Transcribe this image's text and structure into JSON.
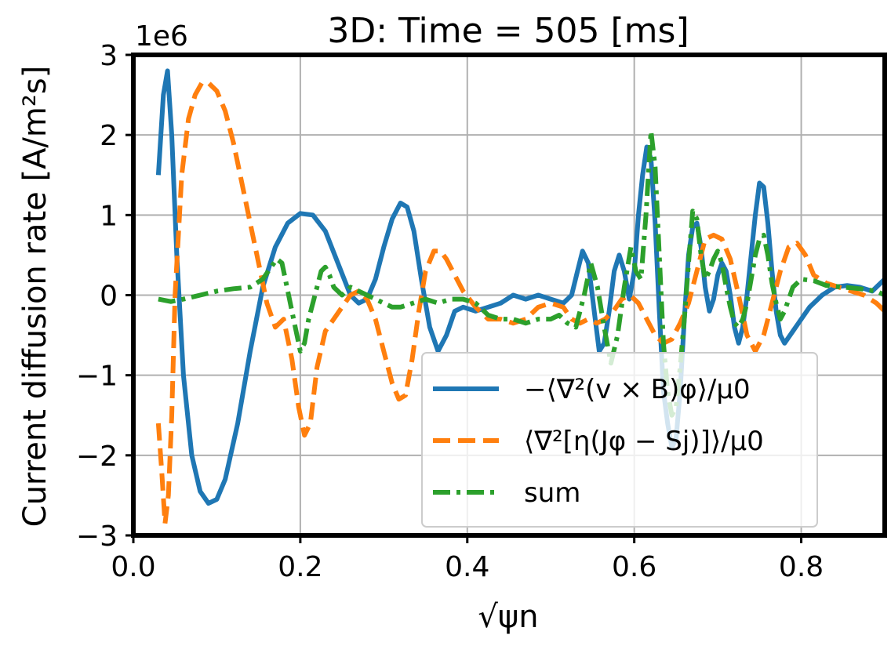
{
  "chart_data": {
    "type": "line",
    "title": "3D: Time = 505 [ms]",
    "xlabel": "√ψn",
    "ylabel": "Current diffusion rate [A/m²s]",
    "y_multiplier": "1e6",
    "xlim": [
      0.0,
      0.9
    ],
    "ylim": [
      -3,
      3
    ],
    "xticks": [
      0.0,
      0.2,
      0.4,
      0.6,
      0.8
    ],
    "xtick_labels": [
      "0.0",
      "0.2",
      "0.4",
      "0.6",
      "0.8"
    ],
    "yticks": [
      -3,
      -2,
      -1,
      0,
      1,
      2,
      3
    ],
    "ytick_labels": [
      "−3",
      "−2",
      "−1",
      "0",
      "1",
      "2",
      "3"
    ],
    "grid": true,
    "legend_position": "lower-right",
    "series": [
      {
        "name": "−⟨∇²(v × B)φ⟩/μ0",
        "color": "#1f77b4",
        "style": "solid",
        "x": [
          0.03,
          0.036,
          0.041,
          0.046,
          0.052,
          0.06,
          0.07,
          0.08,
          0.09,
          0.1,
          0.11,
          0.125,
          0.14,
          0.155,
          0.17,
          0.185,
          0.2,
          0.215,
          0.23,
          0.245,
          0.26,
          0.27,
          0.28,
          0.29,
          0.3,
          0.31,
          0.32,
          0.328,
          0.336,
          0.345,
          0.355,
          0.365,
          0.375,
          0.385,
          0.395,
          0.41,
          0.425,
          0.44,
          0.455,
          0.47,
          0.485,
          0.5,
          0.515,
          0.525,
          0.532,
          0.538,
          0.545,
          0.552,
          0.558,
          0.564,
          0.57,
          0.576,
          0.582,
          0.588,
          0.594,
          0.6,
          0.605,
          0.61,
          0.615,
          0.62,
          0.625,
          0.63,
          0.635,
          0.64,
          0.645,
          0.65,
          0.655,
          0.66,
          0.665,
          0.67,
          0.675,
          0.68,
          0.685,
          0.69,
          0.695,
          0.7,
          0.705,
          0.71,
          0.715,
          0.72,
          0.725,
          0.73,
          0.735,
          0.74,
          0.745,
          0.75,
          0.755,
          0.76,
          0.765,
          0.77,
          0.775,
          0.78,
          0.79,
          0.8,
          0.81,
          0.825,
          0.84,
          0.855,
          0.87,
          0.885,
          0.9
        ],
        "y": [
          1.5,
          2.5,
          2.8,
          2.0,
          0.5,
          -1.0,
          -2.0,
          -2.45,
          -2.6,
          -2.55,
          -2.3,
          -1.6,
          -0.7,
          0.1,
          0.6,
          0.9,
          1.02,
          1.0,
          0.8,
          0.4,
          0.0,
          -0.1,
          -0.05,
          0.2,
          0.6,
          0.95,
          1.15,
          1.1,
          0.8,
          0.2,
          -0.4,
          -0.7,
          -0.5,
          -0.2,
          -0.15,
          -0.2,
          -0.15,
          -0.1,
          0.0,
          -0.05,
          0.0,
          -0.05,
          -0.1,
          0.0,
          0.3,
          0.55,
          0.4,
          -0.2,
          -0.7,
          -0.6,
          -0.2,
          0.3,
          0.5,
          0.3,
          -0.05,
          0.3,
          1.0,
          1.5,
          1.85,
          1.7,
          0.9,
          -0.2,
          -1.2,
          -1.6,
          -1.9,
          -1.8,
          -1.2,
          -0.3,
          0.5,
          0.85,
          0.9,
          0.6,
          0.1,
          -0.2,
          -0.05,
          0.25,
          0.4,
          0.3,
          0.0,
          -0.4,
          -0.6,
          -0.4,
          0.0,
          0.5,
          1.0,
          1.4,
          1.35,
          0.9,
          0.3,
          -0.2,
          -0.5,
          -0.6,
          -0.45,
          -0.3,
          -0.15,
          0.0,
          0.1,
          0.12,
          0.1,
          0.05,
          0.2
        ]
      },
      {
        "name": "⟨∇²[η(Jφ − Sj)]⟩/μ0",
        "color": "#ff7f0e",
        "style": "dashed",
        "x": [
          0.03,
          0.034,
          0.038,
          0.042,
          0.046,
          0.05,
          0.058,
          0.066,
          0.074,
          0.082,
          0.09,
          0.1,
          0.11,
          0.12,
          0.13,
          0.14,
          0.15,
          0.16,
          0.17,
          0.18,
          0.19,
          0.198,
          0.205,
          0.212,
          0.22,
          0.23,
          0.24,
          0.25,
          0.26,
          0.27,
          0.28,
          0.29,
          0.3,
          0.31,
          0.318,
          0.326,
          0.334,
          0.342,
          0.35,
          0.36,
          0.368,
          0.375,
          0.385,
          0.395,
          0.41,
          0.425,
          0.44,
          0.455,
          0.47,
          0.485,
          0.5,
          0.515,
          0.525,
          0.535,
          0.545,
          0.555,
          0.565,
          0.575,
          0.585,
          0.595,
          0.605,
          0.615,
          0.625,
          0.635,
          0.645,
          0.655,
          0.665,
          0.675,
          0.685,
          0.695,
          0.705,
          0.715,
          0.725,
          0.735,
          0.745,
          0.755,
          0.765,
          0.775,
          0.785,
          0.795,
          0.805,
          0.815,
          0.83,
          0.845,
          0.86,
          0.875,
          0.89,
          0.9
        ],
        "y": [
          -1.6,
          -2.2,
          -2.85,
          -2.5,
          -1.5,
          0.0,
          1.5,
          2.2,
          2.5,
          2.65,
          2.65,
          2.55,
          2.3,
          1.9,
          1.4,
          0.9,
          0.4,
          -0.1,
          -0.4,
          -0.3,
          -0.8,
          -1.4,
          -1.75,
          -1.6,
          -0.9,
          -0.45,
          -0.3,
          -0.15,
          0.0,
          0.05,
          -0.05,
          -0.3,
          -0.7,
          -1.1,
          -1.3,
          -1.25,
          -0.8,
          -0.2,
          0.3,
          0.55,
          0.55,
          0.45,
          0.25,
          0.05,
          -0.15,
          -0.3,
          -0.3,
          -0.35,
          -0.3,
          -0.15,
          -0.1,
          -0.15,
          -0.3,
          -0.35,
          -0.3,
          -0.35,
          -0.3,
          -0.2,
          -0.05,
          0.0,
          -0.1,
          -0.3,
          -0.5,
          -0.6,
          -0.55,
          -0.35,
          -0.1,
          0.3,
          0.7,
          0.75,
          0.7,
          0.45,
          0.0,
          -0.5,
          -0.7,
          -0.5,
          -0.1,
          0.3,
          0.6,
          0.65,
          0.5,
          0.25,
          0.15,
          0.1,
          0.05,
          0.0,
          -0.1,
          -0.2
        ]
      },
      {
        "name": "sum",
        "color": "#2ca02c",
        "style": "dashdot",
        "x": [
          0.03,
          0.045,
          0.06,
          0.08,
          0.1,
          0.12,
          0.14,
          0.155,
          0.165,
          0.172,
          0.178,
          0.184,
          0.19,
          0.196,
          0.2,
          0.205,
          0.21,
          0.215,
          0.22,
          0.225,
          0.23,
          0.235,
          0.24,
          0.25,
          0.26,
          0.27,
          0.28,
          0.29,
          0.3,
          0.31,
          0.32,
          0.335,
          0.35,
          0.365,
          0.38,
          0.395,
          0.41,
          0.425,
          0.44,
          0.455,
          0.47,
          0.485,
          0.5,
          0.51,
          0.52,
          0.53,
          0.54,
          0.548,
          0.556,
          0.564,
          0.572,
          0.58,
          0.588,
          0.596,
          0.602,
          0.608,
          0.614,
          0.62,
          0.625,
          0.63,
          0.635,
          0.64,
          0.645,
          0.65,
          0.655,
          0.66,
          0.665,
          0.67,
          0.675,
          0.68,
          0.685,
          0.69,
          0.695,
          0.7,
          0.705,
          0.71,
          0.715,
          0.72,
          0.725,
          0.73,
          0.735,
          0.74,
          0.745,
          0.75,
          0.755,
          0.76,
          0.765,
          0.77,
          0.775,
          0.78,
          0.79,
          0.8,
          0.815,
          0.83,
          0.85,
          0.87,
          0.89,
          0.9
        ],
        "y": [
          -0.05,
          -0.08,
          -0.05,
          0.0,
          0.05,
          0.08,
          0.1,
          0.2,
          0.35,
          0.45,
          0.4,
          0.1,
          -0.2,
          -0.5,
          -0.7,
          -0.6,
          -0.3,
          -0.1,
          0.1,
          0.3,
          0.35,
          0.25,
          0.1,
          0.0,
          0.1,
          0.05,
          0.0,
          -0.05,
          -0.1,
          -0.15,
          -0.15,
          -0.1,
          -0.05,
          -0.1,
          -0.05,
          -0.05,
          -0.1,
          -0.25,
          -0.3,
          -0.3,
          -0.35,
          -0.3,
          -0.3,
          -0.25,
          -0.35,
          -0.4,
          0.0,
          0.4,
          0.1,
          -0.4,
          -0.85,
          -0.5,
          0.1,
          0.6,
          0.3,
          0.2,
          1.0,
          2.05,
          1.6,
          0.5,
          -0.6,
          -1.2,
          -1.5,
          -1.4,
          -0.9,
          -0.3,
          0.4,
          1.05,
          0.95,
          0.5,
          0.2,
          0.3,
          0.45,
          0.55,
          0.4,
          0.1,
          -0.15,
          -0.35,
          -0.4,
          -0.3,
          -0.1,
          0.2,
          0.5,
          0.7,
          0.75,
          0.5,
          0.15,
          -0.1,
          -0.3,
          -0.2,
          0.1,
          0.2,
          0.18,
          0.12,
          0.1,
          0.08,
          0.05,
          0.0
        ]
      }
    ]
  }
}
